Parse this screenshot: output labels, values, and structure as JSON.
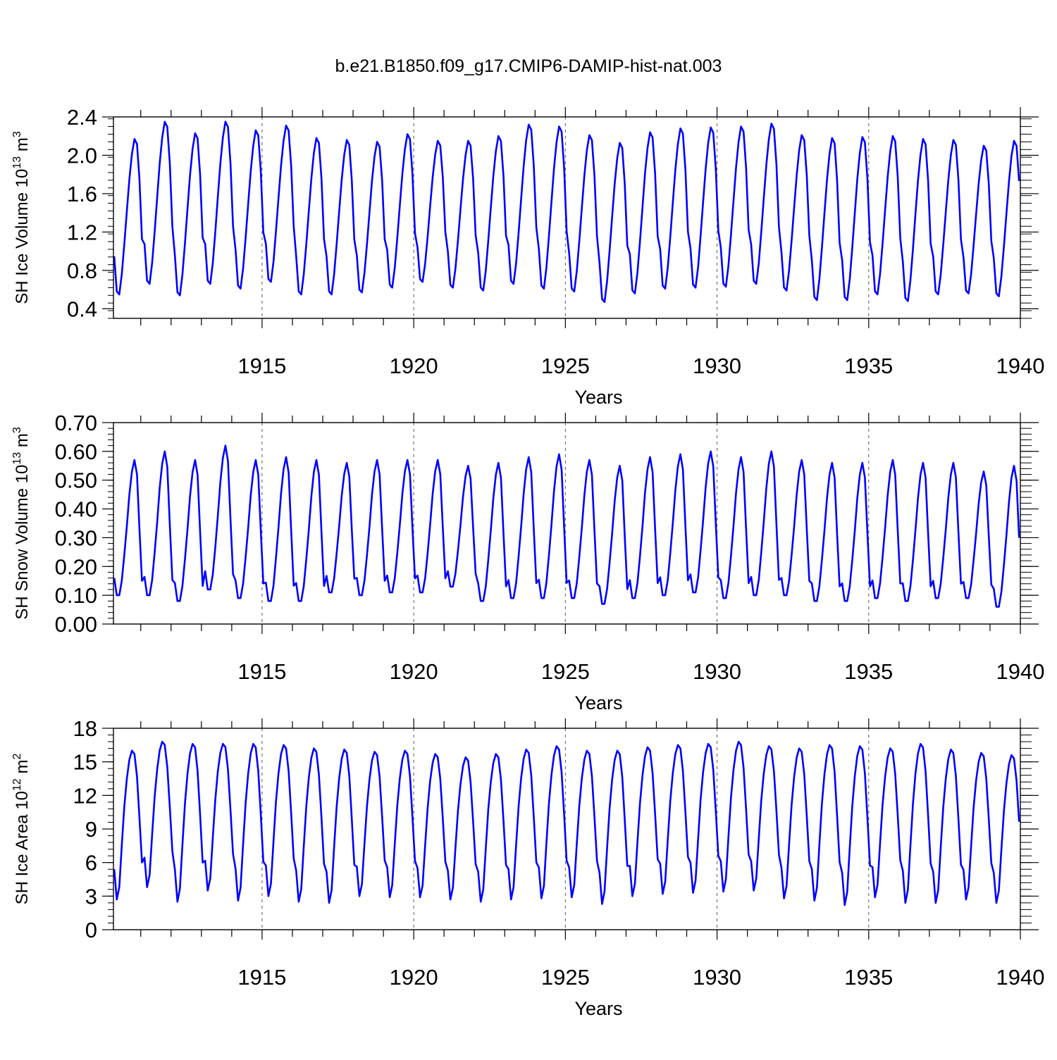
{
  "figure_title": "b.e21.B1850.f09_g17.CMIP6-DAMIP-hist-nat.003",
  "colors": {
    "series": "#0000ff",
    "axes": "#000000",
    "grid": "#555555"
  },
  "chart_data": [
    {
      "type": "line",
      "title": "b.e21.B1850.f09_g17.CMIP6-DAMIP-hist-nat.003",
      "xlabel": "Years",
      "ylabel_text": "SH Ice Volume 10",
      "ylabel_sup": "13",
      "ylabel_unit": " m",
      "ylabel_unit_sup": "3",
      "xlim": [
        1910.1,
        1940.0
      ],
      "ylim": [
        0.3,
        2.4
      ],
      "x_ticks": [
        1915,
        1920,
        1925,
        1930,
        1935,
        1940
      ],
      "x_tick_labels": [
        "1915",
        "1920",
        "1925",
        "1930",
        "1935",
        "1940"
      ],
      "y_ticks": [
        0.4,
        0.8,
        1.2,
        1.6,
        2.0,
        2.4
      ],
      "y_tick_labels": [
        "0.4",
        "0.8",
        "1.2",
        "1.6",
        "2.0",
        "2.4"
      ],
      "y_minor_step": 0.08,
      "vertical_gridlines": [
        1915,
        1920,
        1925,
        1930,
        1935
      ],
      "start_year": 1910,
      "monthly_shape": [
        0.93,
        0.58,
        0.55,
        0.75,
        1.05,
        1.38,
        1.7,
        1.95,
        2.1,
        2.05,
        1.7,
        1.1
      ],
      "annual_max": [
        2.17,
        2.35,
        2.23,
        2.35,
        2.26,
        2.31,
        2.18,
        2.16,
        2.14,
        2.22,
        2.15,
        2.15,
        2.2,
        2.32,
        2.3,
        2.21,
        2.13,
        2.24,
        2.28,
        2.29,
        2.3,
        2.33,
        2.21,
        2.18,
        2.19,
        2.2,
        2.17,
        2.16,
        2.1,
        2.15
      ],
      "annual_min": [
        0.55,
        0.66,
        0.54,
        0.66,
        0.61,
        0.68,
        0.55,
        0.55,
        0.57,
        0.62,
        0.68,
        0.62,
        0.59,
        0.66,
        0.61,
        0.58,
        0.47,
        0.56,
        0.61,
        0.62,
        0.63,
        0.66,
        0.59,
        0.49,
        0.49,
        0.55,
        0.48,
        0.55,
        0.56,
        0.53
      ],
      "series": [
        {
          "name": "SH Ice Volume",
          "color": "#0000ff"
        }
      ]
    },
    {
      "type": "line",
      "xlabel": "Years",
      "ylabel_text": "SH Snow Volume 10",
      "ylabel_sup": "13",
      "ylabel_unit": " m",
      "ylabel_unit_sup": "3",
      "xlim": [
        1910.1,
        1940.0
      ],
      "ylim": [
        0.0,
        0.7
      ],
      "x_ticks": [
        1915,
        1920,
        1925,
        1930,
        1935,
        1940
      ],
      "x_tick_labels": [
        "1915",
        "1920",
        "1925",
        "1930",
        "1935",
        "1940"
      ],
      "y_ticks": [
        0.0,
        0.1,
        0.2,
        0.3,
        0.4,
        0.5,
        0.6,
        0.7
      ],
      "y_tick_labels": [
        "0.00",
        "0.10",
        "0.20",
        "0.30",
        "0.40",
        "0.50",
        "0.60",
        "0.70"
      ],
      "y_minor_step": 0.02,
      "vertical_gridlines": [
        1915,
        1920,
        1925,
        1930,
        1935
      ],
      "start_year": 1910,
      "monthly_shape": [
        0.16,
        0.1,
        0.1,
        0.15,
        0.24,
        0.34,
        0.45,
        0.53,
        0.57,
        0.52,
        0.33,
        0.15
      ],
      "annual_max": [
        0.57,
        0.6,
        0.57,
        0.62,
        0.57,
        0.58,
        0.57,
        0.56,
        0.57,
        0.57,
        0.57,
        0.55,
        0.56,
        0.58,
        0.59,
        0.57,
        0.55,
        0.58,
        0.59,
        0.6,
        0.58,
        0.6,
        0.57,
        0.56,
        0.56,
        0.57,
        0.56,
        0.56,
        0.53,
        0.55
      ],
      "annual_min": [
        0.1,
        0.1,
        0.08,
        0.12,
        0.09,
        0.08,
        0.08,
        0.11,
        0.1,
        0.11,
        0.11,
        0.13,
        0.08,
        0.09,
        0.09,
        0.09,
        0.07,
        0.09,
        0.1,
        0.11,
        0.09,
        0.1,
        0.1,
        0.08,
        0.08,
        0.09,
        0.08,
        0.09,
        0.09,
        0.06
      ],
      "series": [
        {
          "name": "SH Snow Volume",
          "color": "#0000ff"
        }
      ]
    },
    {
      "type": "line",
      "xlabel": "Years",
      "ylabel_text": "SH Ice Area 10",
      "ylabel_sup": "12",
      "ylabel_unit": " m",
      "ylabel_unit_sup": "2",
      "xlim": [
        1910.1,
        1940.0
      ],
      "ylim": [
        0,
        18
      ],
      "x_ticks": [
        1915,
        1920,
        1925,
        1930,
        1935,
        1940
      ],
      "x_tick_labels": [
        "1915",
        "1920",
        "1925",
        "1930",
        "1935",
        "1940"
      ],
      "y_ticks": [
        0,
        3,
        6,
        9,
        12,
        15,
        18
      ],
      "y_tick_labels": [
        "0",
        "3",
        "6",
        "9",
        "12",
        "15",
        "18"
      ],
      "y_minor_step": 0.6,
      "vertical_gridlines": [
        1915,
        1920,
        1925,
        1930,
        1935
      ],
      "start_year": 1910,
      "monthly_shape": [
        5.4,
        2.7,
        3.8,
        7.5,
        11.0,
        13.5,
        15.2,
        16.0,
        15.7,
        13.7,
        10.0,
        6.0
      ],
      "annual_max": [
        16.0,
        16.8,
        16.6,
        16.6,
        16.6,
        16.5,
        16.2,
        16.1,
        15.9,
        16.0,
        15.7,
        15.4,
        15.7,
        16.1,
        16.4,
        16.0,
        16.0,
        16.3,
        16.5,
        16.6,
        16.8,
        16.4,
        16.2,
        16.5,
        16.4,
        16.2,
        16.6,
        16.1,
        15.8,
        15.6
      ],
      "annual_min": [
        2.7,
        3.8,
        2.5,
        3.5,
        2.6,
        3.0,
        2.5,
        2.4,
        3.0,
        2.9,
        2.9,
        2.7,
        2.5,
        2.7,
        2.8,
        2.9,
        2.3,
        3.0,
        3.2,
        3.3,
        3.4,
        3.5,
        2.8,
        2.6,
        2.2,
        2.9,
        2.4,
        2.4,
        2.7,
        2.4
      ],
      "series": [
        {
          "name": "SH Ice Area",
          "color": "#0000ff"
        }
      ]
    }
  ]
}
